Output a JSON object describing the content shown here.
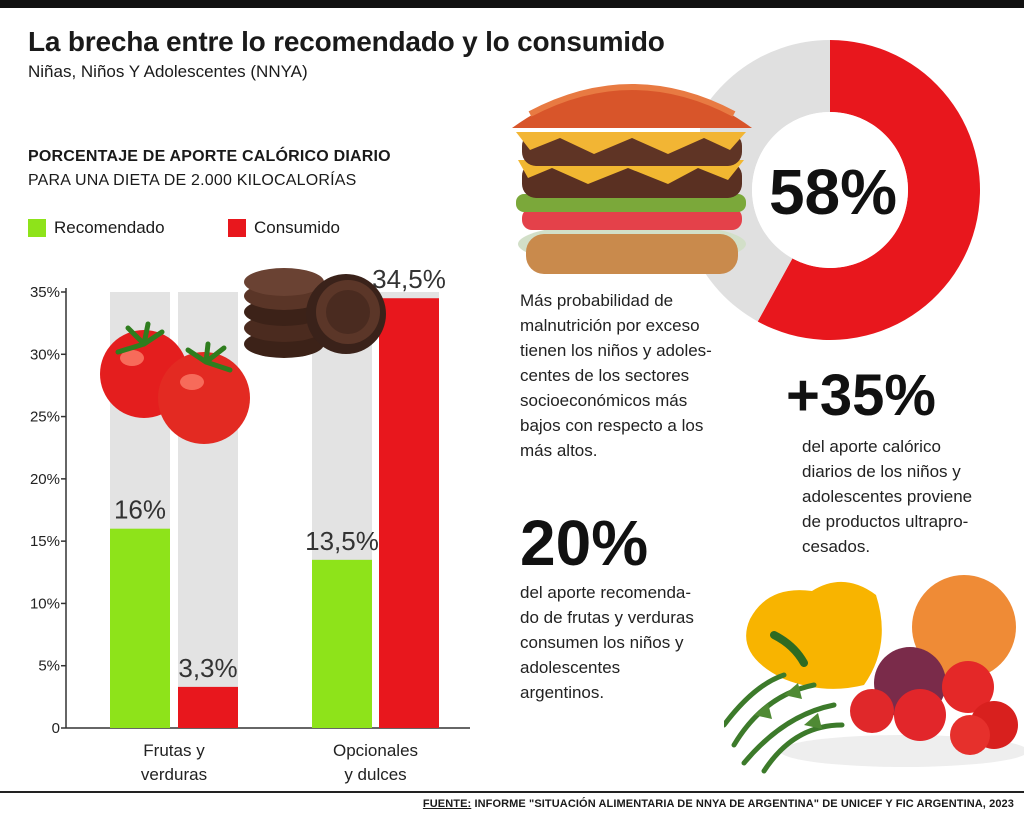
{
  "header": {
    "title": "La brecha entre lo recomendado y lo consumido",
    "subtitle": "Niñas, Niños Y Adolescentes (NNYA)"
  },
  "section": {
    "heading": "PORCENTAJE DE APORTE CALÓRICO DIARIO",
    "subheading": "PARA UNA DIETA DE 2.000 KILOCALORÍAS"
  },
  "legend": {
    "recommended": "Recomendado",
    "consumed": "Consumido"
  },
  "colors": {
    "recommended": "#8ee31a",
    "consumed": "#e8171d",
    "track": "#e3e3e3",
    "donut_rest": "#e0e0e0"
  },
  "chart_data": {
    "type": "bar",
    "categories": [
      [
        "Frutas y",
        "verduras"
      ],
      [
        "Opcionales",
        "y dulces"
      ]
    ],
    "series": [
      {
        "name": "Recomendado",
        "values": [
          16,
          13.5
        ],
        "labels": [
          "16%",
          "13,5%"
        ]
      },
      {
        "name": "Consumido",
        "values": [
          3.3,
          34.5
        ],
        "labels": [
          "3,3%",
          "34,5%"
        ]
      }
    ],
    "ylim": [
      0,
      35
    ],
    "yticks": [
      0,
      5,
      10,
      15,
      20,
      25,
      30,
      35
    ],
    "yticklabels": [
      "0",
      "5%",
      "10%",
      "15%",
      "20%",
      "25%",
      "30%",
      "35%"
    ]
  },
  "donut": {
    "value": 58,
    "label": "58%",
    "text": [
      "Más probabilidad de",
      "malnutrición por exceso",
      "tienen los niños y adoles-",
      "centes de los sectores",
      "socioeconómicos más",
      "bajos con respecto a los",
      "más altos."
    ]
  },
  "stat_ultra": {
    "value": "+35%",
    "text": [
      "del aporte calórico",
      "diarios de los niños y",
      "adolescentes proviene",
      "de productos ultrapro-",
      "cesados."
    ]
  },
  "stat_fruits": {
    "value": "20%",
    "text": [
      "del aporte recomenda-",
      "do de frutas y verduras",
      "consumen los niños y",
      "adolescentes",
      "argentinos."
    ]
  },
  "footer": {
    "source_label": "FUENTE:",
    "source_text": "INFORME \"SITUACIÓN ALIMENTARIA DE NNYA DE ARGENTINA\" DE UNICEF Y FIC ARGENTINA, 2023"
  },
  "images": [
    "tomatoes-image",
    "cookies-image",
    "burger-image",
    "vegetables-image"
  ]
}
